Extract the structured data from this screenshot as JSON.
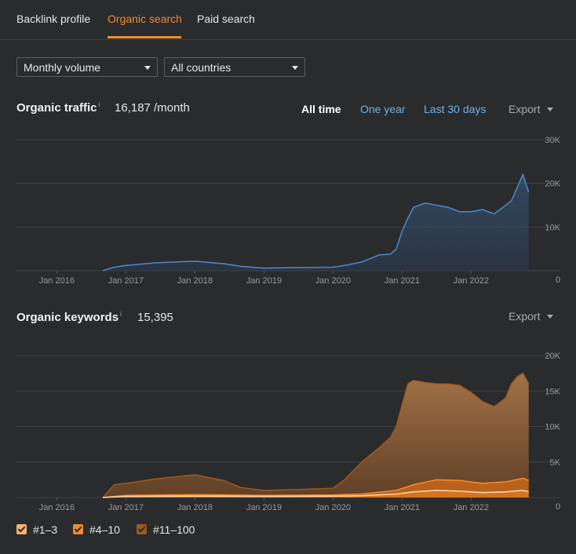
{
  "tabs": [
    {
      "label": "Backlink profile"
    },
    {
      "label": "Organic search"
    },
    {
      "label": "Paid search"
    }
  ],
  "filters": {
    "volume": {
      "selected": "Monthly volume"
    },
    "country": {
      "selected": "All countries"
    }
  },
  "traffic": {
    "title": "Organic traffic",
    "info": "i",
    "value": "16,187 /month",
    "ranges": [
      "All time",
      "One year",
      "Last 30 days"
    ],
    "active_range": "All time",
    "export_label": "Export"
  },
  "keywords": {
    "title": "Organic keywords",
    "info": "i",
    "value": "15,395",
    "export_label": "Export"
  },
  "legend": [
    {
      "label": "#1–3",
      "color": "#f6b26b"
    },
    {
      "label": "#4–10",
      "color": "#f28b2c"
    },
    {
      "label": "#11–100",
      "color": "#a05a1c"
    }
  ],
  "colors": {
    "accent": "#f28b2c",
    "traffic_line": "#4a86c8",
    "link": "#6db3e8"
  },
  "chart_data": [
    {
      "type": "area",
      "title": "Organic traffic",
      "x_ticks": [
        "Jan 2016",
        "Jan 2017",
        "Jan 2018",
        "Jan 2019",
        "Jan 2020",
        "Jan 2021",
        "Jan 2022"
      ],
      "y_ticks": [
        "30K",
        "20K",
        "10K",
        "0"
      ],
      "ylim": [
        0,
        30000
      ],
      "xlim": [
        "2015-06",
        "2022-12"
      ],
      "series": [
        {
          "x": [
            "2016-09",
            "2016-11",
            "2017-01",
            "2017-06",
            "2018-01",
            "2018-06",
            "2018-09",
            "2019-01",
            "2019-06",
            "2020-01",
            "2020-03",
            "2020-06",
            "2020-09",
            "2020-11",
            "2020-12",
            "2021-01",
            "2021-02",
            "2021-03",
            "2021-05",
            "2021-07",
            "2021-09",
            "2021-11",
            "2022-01",
            "2022-03",
            "2022-05",
            "2022-07",
            "2022-08",
            "2022-09",
            "2022-10",
            "2022-11"
          ],
          "values": [
            0,
            800,
            1200,
            1800,
            2200,
            1600,
            1000,
            600,
            700,
            800,
            1200,
            2000,
            3600,
            3800,
            5000,
            9000,
            12000,
            14500,
            15500,
            15000,
            14500,
            13500,
            13500,
            14000,
            13000,
            15000,
            16000,
            19000,
            22000,
            18000
          ]
        }
      ]
    },
    {
      "type": "area",
      "title": "Organic keywords",
      "x_ticks": [
        "Jan 2016",
        "Jan 2017",
        "Jan 2018",
        "Jan 2019",
        "Jan 2020",
        "Jan 2021",
        "Jan 2022"
      ],
      "y_ticks": [
        "20K",
        "15K",
        "10K",
        "5K",
        "0"
      ],
      "ylim": [
        0,
        20000
      ],
      "xlim": [
        "2015-06",
        "2022-12"
      ],
      "series": [
        {
          "name": "#11–100",
          "x": [
            "2016-09",
            "2016-11",
            "2017-01",
            "2017-06",
            "2018-01",
            "2018-06",
            "2018-09",
            "2019-01",
            "2019-06",
            "2020-01",
            "2020-03",
            "2020-06",
            "2020-09",
            "2020-11",
            "2020-12",
            "2021-01",
            "2021-02",
            "2021-03",
            "2021-05",
            "2021-07",
            "2021-09",
            "2021-11",
            "2022-01",
            "2022-03",
            "2022-05",
            "2022-07",
            "2022-08",
            "2022-09",
            "2022-10",
            "2022-11"
          ],
          "values": [
            0,
            1800,
            2000,
            2600,
            3200,
            2400,
            1400,
            1000,
            1100,
            1300,
            2500,
            5000,
            7000,
            8500,
            10000,
            13000,
            16000,
            16500,
            16200,
            16000,
            16000,
            15800,
            14800,
            13500,
            12800,
            14000,
            16000,
            17000,
            17500,
            16000
          ]
        },
        {
          "name": "#4–10",
          "x": [
            "2016-09",
            "2017-01",
            "2018-01",
            "2019-01",
            "2020-01",
            "2020-06",
            "2020-12",
            "2021-03",
            "2021-07",
            "2021-11",
            "2022-03",
            "2022-07",
            "2022-10",
            "2022-11"
          ],
          "values": [
            0,
            300,
            400,
            300,
            350,
            500,
            1000,
            1800,
            2500,
            2400,
            2000,
            2200,
            2700,
            2400
          ]
        },
        {
          "name": "#1–3",
          "x": [
            "2016-09",
            "2017-01",
            "2018-01",
            "2019-01",
            "2020-01",
            "2020-06",
            "2020-12",
            "2021-03",
            "2021-07",
            "2021-11",
            "2022-03",
            "2022-07",
            "2022-10",
            "2022-11"
          ],
          "values": [
            0,
            150,
            200,
            150,
            200,
            250,
            500,
            800,
            1000,
            900,
            700,
            800,
            1000,
            800
          ]
        }
      ]
    }
  ]
}
